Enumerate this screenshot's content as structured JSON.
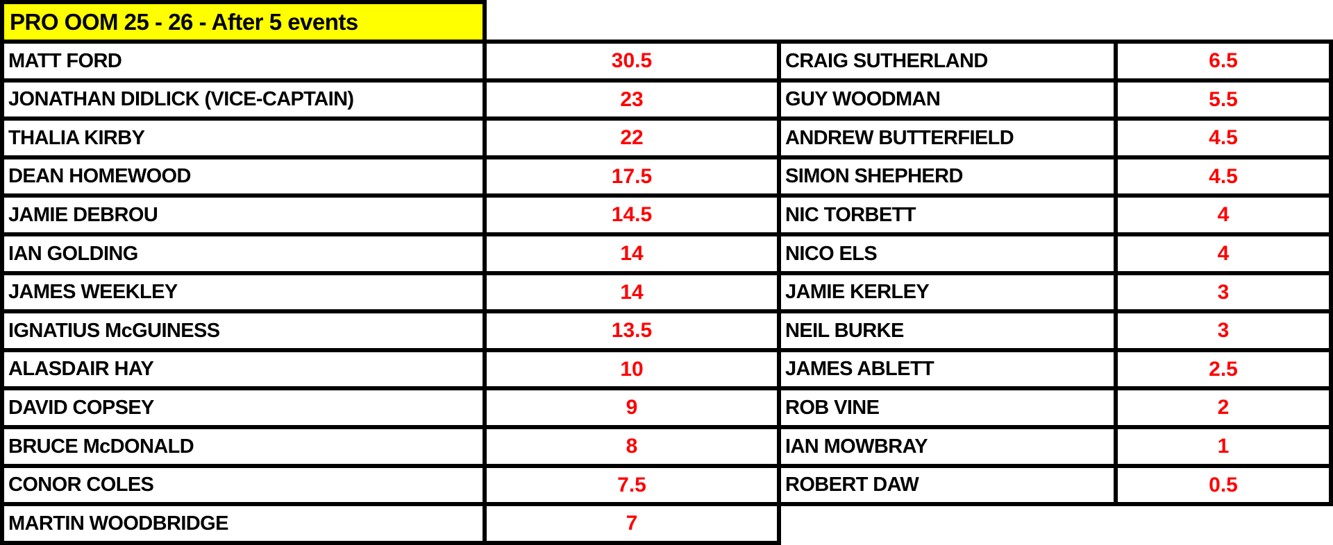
{
  "title": "PRO OOM 25 - 26 - After 5 events",
  "colors": {
    "title_bg": "#ffff00",
    "points": "#ff0000",
    "border": "#000000"
  },
  "left_column": [
    {
      "name": "MATT FORD",
      "points": "30.5"
    },
    {
      "name": "JONATHAN DIDLICK (VICE-CAPTAIN)",
      "points": "23"
    },
    {
      "name": "THALIA KIRBY",
      "points": "22"
    },
    {
      "name": "DEAN HOMEWOOD",
      "points": "17.5"
    },
    {
      "name": "JAMIE DEBROU",
      "points": "14.5"
    },
    {
      "name": "IAN GOLDING",
      "points": "14"
    },
    {
      "name": "JAMES WEEKLEY",
      "points": "14"
    },
    {
      "name": "IGNATIUS McGUINESS",
      "points": "13.5"
    },
    {
      "name": "ALASDAIR HAY",
      "points": "10"
    },
    {
      "name": "DAVID COPSEY",
      "points": "9"
    },
    {
      "name": "BRUCE McDONALD",
      "points": "8"
    },
    {
      "name": "CONOR COLES",
      "points": "7.5"
    },
    {
      "name": "MARTIN WOODBRIDGE",
      "points": "7"
    }
  ],
  "right_column": [
    {
      "name": "CRAIG SUTHERLAND",
      "points": "6.5"
    },
    {
      "name": "GUY WOODMAN",
      "points": "5.5"
    },
    {
      "name": "ANDREW BUTTERFIELD",
      "points": "4.5"
    },
    {
      "name": "SIMON SHEPHERD",
      "points": "4.5"
    },
    {
      "name": "NIC TORBETT",
      "points": "4"
    },
    {
      "name": "NICO ELS",
      "points": "4"
    },
    {
      "name": "JAMIE KERLEY",
      "points": "3"
    },
    {
      "name": "NEIL BURKE",
      "points": "3"
    },
    {
      "name": "JAMES ABLETT",
      "points": "2.5"
    },
    {
      "name": "ROB VINE",
      "points": "2"
    },
    {
      "name": "IAN MOWBRAY",
      "points": "1"
    },
    {
      "name": "ROBERT DAW",
      "points": "0.5"
    }
  ]
}
